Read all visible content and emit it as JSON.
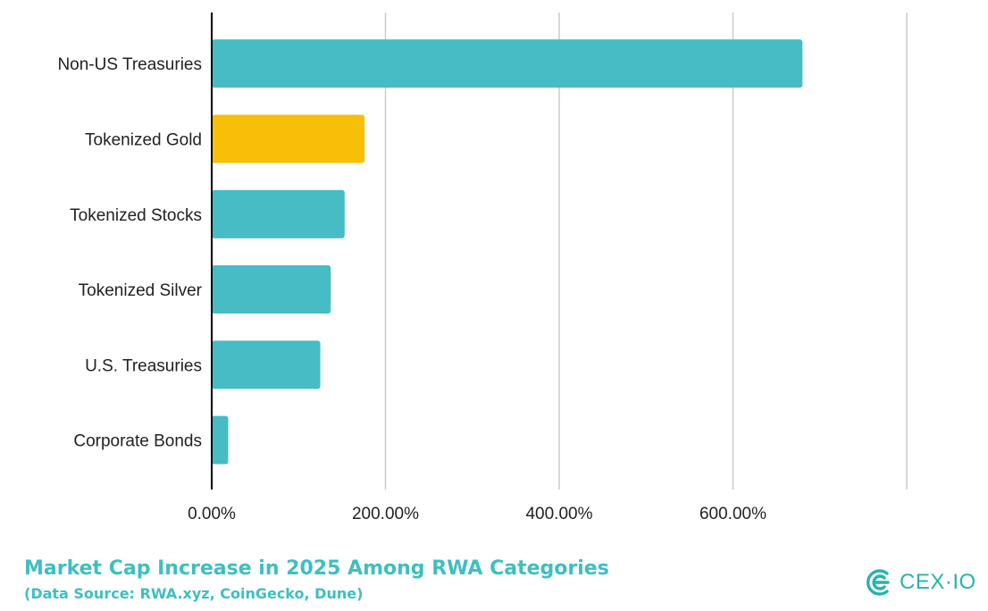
{
  "chart_data": {
    "type": "bar",
    "orientation": "horizontal",
    "title": "Market Cap Increase in 2025 Among RWA Categories",
    "subtitle": "(Data Source: RWA.xyz, CoinGecko, Dune)",
    "categories": [
      "Non-US Treasuries",
      "Tokenized Gold",
      "Tokenized Stocks",
      "Tokenized Silver",
      "U.S. Treasuries",
      "Corporate Bonds"
    ],
    "values": [
      680,
      176,
      153,
      137,
      125,
      19
    ],
    "unit": "%",
    "xlim": [
      0,
      800
    ],
    "xticks": [
      0,
      200,
      400,
      600,
      800
    ],
    "xtick_labels": [
      "0.00%",
      "200.00%",
      "400.00%",
      "600.00%",
      ""
    ],
    "grid": "vertical",
    "legend": "none",
    "colors": {
      "default": "#47bcc4",
      "highlight": "#f7bf08",
      "highlight_category": "Tokenized Gold",
      "grid": "#cccccc",
      "axis": "#000000"
    }
  },
  "brand": {
    "name": "CEX",
    "separator": "·",
    "suffix": "IO",
    "icon": "cex-io-logo-icon",
    "color": "#27b3ae"
  }
}
